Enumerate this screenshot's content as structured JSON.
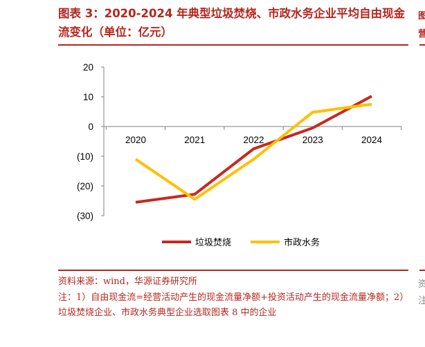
{
  "title": "图表 3：2020-2024 年典型垃圾焚烧、市政水务企业平均自由现金流变化（单位：亿元）",
  "chart_data": {
    "type": "line",
    "categories": [
      "2020",
      "2021",
      "2022",
      "2023",
      "2024"
    ],
    "series": [
      {
        "name": "垃圾焚烧",
        "values": [
          -25.5,
          -22.8,
          -7.5,
          -0.5,
          10.2
        ],
        "color": "#c8281f"
      },
      {
        "name": "市政水务",
        "values": [
          -11.0,
          -24.5,
          -11.0,
          4.8,
          7.5
        ],
        "color": "#ffc000"
      }
    ],
    "y_ticks": [
      20,
      10,
      0,
      -10,
      -20,
      -30
    ],
    "y_tick_labels": [
      "20",
      "10",
      "0",
      "(10)",
      "(20)",
      "(30)"
    ],
    "ylim": [
      -30,
      20
    ],
    "xlabel": "",
    "ylabel": "",
    "grid": false,
    "legend_position": "bottom"
  },
  "notes": {
    "source": "资料来源：wind，华源证券研究所",
    "note": "注：1）自由现金流=经营活动产生的现金流量净额+投资活动产生的现金流量净额；2）垃圾焚烧企业、市政水务典型企业选取图表 8 中的企业"
  }
}
